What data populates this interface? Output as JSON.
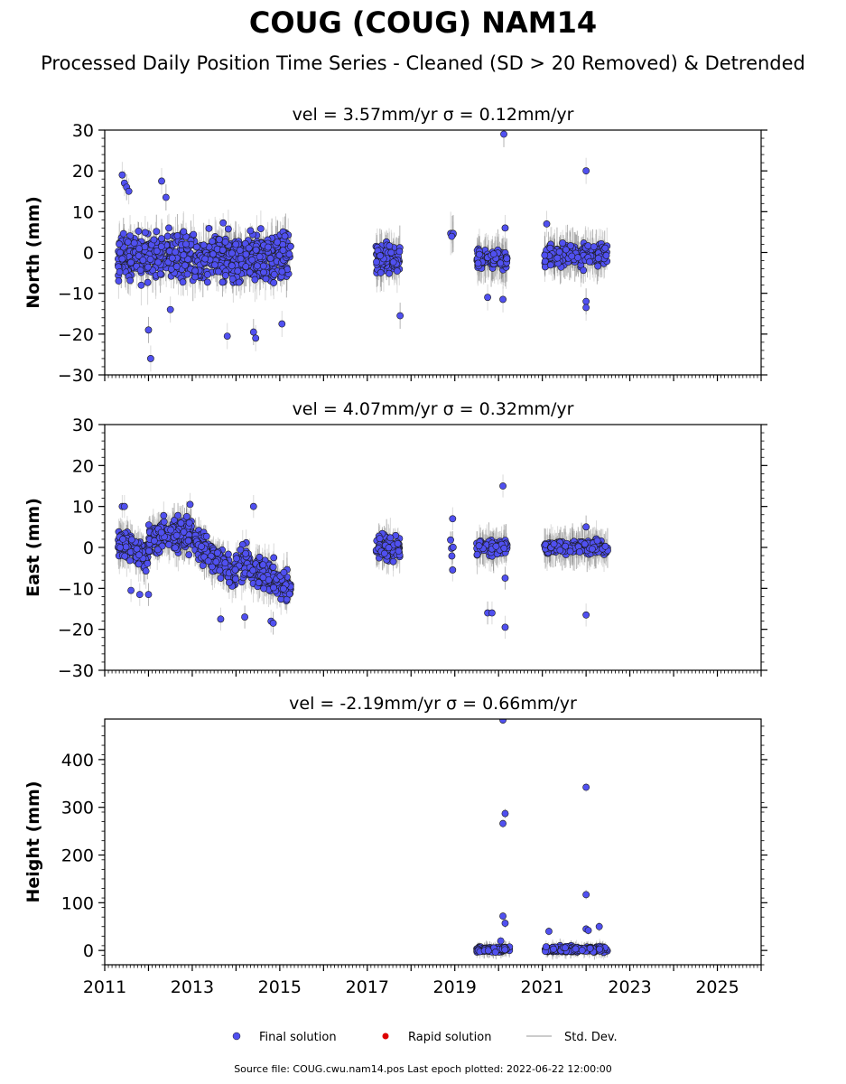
{
  "title": "COUG (COUG) NAM14",
  "subtitle": "Processed Daily Position Time Series - Cleaned (SD > 20 Removed) & Detrended",
  "footer": "Source file: COUG.cwu.nam14.pos  Last epoch plotted: 2022-06-22 12:00:00",
  "legend": {
    "final_label": "Final solution",
    "rapid_label": "Rapid solution",
    "std_label": "Std. Dev.",
    "placement": "bottom-center"
  },
  "colors": {
    "final_marker": "#5050f0",
    "rapid_marker": "#dd0000",
    "std_dev": "#bbbbbb",
    "marker_edge": "#1a1a1a"
  },
  "chart_data": [
    {
      "type": "scatter",
      "panel": "north",
      "title": "vel = 3.57mm/yr   σ = 0.12mm/yr",
      "ylabel": "North (mm)",
      "xlim": [
        2011,
        2026
      ],
      "ylim": [
        -30,
        30
      ],
      "y_ticks": [
        -30,
        -20,
        -10,
        0,
        10,
        20,
        30
      ],
      "x_ticks": [
        2011,
        2013,
        2015,
        2017,
        2019,
        2021,
        2023,
        2025
      ],
      "clusters": [
        {
          "x_range": [
            2011.3,
            2015.25
          ],
          "center": -1,
          "spread": 5.5,
          "count": 700
        },
        {
          "x_range": [
            2017.2,
            2017.75
          ],
          "center": -1.5,
          "spread": 3.5,
          "count": 110
        },
        {
          "x_range": [
            2018.9,
            2018.97
          ],
          "center": 4,
          "spread": 1.5,
          "count": 5
        },
        {
          "x_range": [
            2019.5,
            2020.2
          ],
          "center": -1.5,
          "spread": 2.2,
          "count": 120
        },
        {
          "x_range": [
            2021.05,
            2022.5
          ],
          "center": -0.5,
          "spread": 2.5,
          "count": 200
        }
      ],
      "outliers": [
        {
          "x": 2011.4,
          "y": 19
        },
        {
          "x": 2011.45,
          "y": 17
        },
        {
          "x": 2011.5,
          "y": 16
        },
        {
          "x": 2011.55,
          "y": 15
        },
        {
          "x": 2011.35,
          "y": 0
        },
        {
          "x": 2012.0,
          "y": -19
        },
        {
          "x": 2012.05,
          "y": -26
        },
        {
          "x": 2012.3,
          "y": 17.5
        },
        {
          "x": 2012.4,
          "y": 13.5
        },
        {
          "x": 2012.5,
          "y": -14
        },
        {
          "x": 2013.8,
          "y": -20.5
        },
        {
          "x": 2014.4,
          "y": -19.5
        },
        {
          "x": 2014.45,
          "y": -21
        },
        {
          "x": 2015.05,
          "y": -17.5
        },
        {
          "x": 2017.75,
          "y": -15.5
        },
        {
          "x": 2019.75,
          "y": -11
        },
        {
          "x": 2020.1,
          "y": -11.5
        },
        {
          "x": 2020.12,
          "y": 29
        },
        {
          "x": 2020.15,
          "y": 6
        },
        {
          "x": 2022.0,
          "y": 20
        },
        {
          "x": 2022.0,
          "y": -12
        },
        {
          "x": 2022.0,
          "y": -13.5
        },
        {
          "x": 2021.1,
          "y": 7
        }
      ]
    },
    {
      "type": "scatter",
      "panel": "east",
      "title": "vel = 4.07mm/yr   σ = 0.32mm/yr",
      "ylabel": "East (mm)",
      "xlim": [
        2011,
        2026
      ],
      "ylim": [
        -30,
        30
      ],
      "y_ticks": [
        -30,
        -20,
        -10,
        0,
        10,
        20,
        30
      ],
      "x_ticks": [
        2011,
        2013,
        2015,
        2017,
        2019,
        2021,
        2023,
        2025
      ],
      "trend_segments": [
        {
          "x_range": [
            2011.3,
            2012.0
          ],
          "y_start": 1.5,
          "y_end": -2
        },
        {
          "x_range": [
            2012.0,
            2013.0
          ],
          "y_start": 2,
          "y_end": 4
        },
        {
          "x_range": [
            2013.0,
            2014.0
          ],
          "y_start": 2,
          "y_end": -7
        },
        {
          "x_range": [
            2014.0,
            2015.25
          ],
          "y_start": -3,
          "y_end": -10
        }
      ],
      "clusters": [
        {
          "x_range": [
            2011.3,
            2015.25
          ],
          "center": 0,
          "spread": 3.5,
          "count": 700
        },
        {
          "x_range": [
            2017.2,
            2017.75
          ],
          "center": 1.5,
          "spread": 2.8,
          "count": 110
        },
        {
          "x_range": [
            2018.9,
            2018.97
          ],
          "center": -1,
          "spread": 2.5,
          "count": 5
        },
        {
          "x_range": [
            2019.5,
            2020.2
          ],
          "center": -0.8,
          "spread": 1.6,
          "count": 120
        },
        {
          "x_range": [
            2021.05,
            2022.5
          ],
          "center": -0.5,
          "spread": 1.5,
          "count": 200
        }
      ],
      "outliers": [
        {
          "x": 2011.4,
          "y": 10
        },
        {
          "x": 2011.45,
          "y": 10
        },
        {
          "x": 2011.35,
          "y": 0
        },
        {
          "x": 2011.6,
          "y": -10.5
        },
        {
          "x": 2011.8,
          "y": -11.5
        },
        {
          "x": 2012.0,
          "y": -11.5
        },
        {
          "x": 2012.95,
          "y": 10.5
        },
        {
          "x": 2013.65,
          "y": -17.5
        },
        {
          "x": 2014.2,
          "y": -17
        },
        {
          "x": 2014.4,
          "y": 10
        },
        {
          "x": 2014.8,
          "y": -18
        },
        {
          "x": 2014.85,
          "y": -18.5
        },
        {
          "x": 2018.95,
          "y": 7
        },
        {
          "x": 2018.95,
          "y": -5.5
        },
        {
          "x": 2019.75,
          "y": -16
        },
        {
          "x": 2019.85,
          "y": -16
        },
        {
          "x": 2020.1,
          "y": 15
        },
        {
          "x": 2020.15,
          "y": -7.5
        },
        {
          "x": 2020.15,
          "y": -19.5
        },
        {
          "x": 2022.0,
          "y": -16.5
        },
        {
          "x": 2022.0,
          "y": 5
        }
      ]
    },
    {
      "type": "scatter",
      "panel": "height",
      "title": "vel = -2.19mm/yr   σ = 0.66mm/yr",
      "ylabel": "Height (mm)",
      "xlim": [
        2011,
        2026
      ],
      "ylim": [
        -30,
        485
      ],
      "y_ticks": [
        0,
        100,
        200,
        300,
        400
      ],
      "x_ticks": [
        2011,
        2013,
        2015,
        2017,
        2019,
        2021,
        2023,
        2025
      ],
      "clusters": [
        {
          "x_range": [
            2019.5,
            2020.25
          ],
          "center": 2,
          "spread": 5,
          "count": 120
        },
        {
          "x_range": [
            2021.05,
            2022.5
          ],
          "center": 2,
          "spread": 6,
          "count": 200
        }
      ],
      "outliers": [
        {
          "x": 2020.1,
          "y": 483
        },
        {
          "x": 2020.15,
          "y": 287
        },
        {
          "x": 2020.1,
          "y": 266
        },
        {
          "x": 2020.1,
          "y": 72
        },
        {
          "x": 2020.15,
          "y": 57
        },
        {
          "x": 2020.05,
          "y": 20
        },
        {
          "x": 2022.0,
          "y": 342
        },
        {
          "x": 2022.0,
          "y": 117
        },
        {
          "x": 2022.0,
          "y": 45
        },
        {
          "x": 2022.05,
          "y": 42
        },
        {
          "x": 2022.3,
          "y": 50
        },
        {
          "x": 2021.15,
          "y": 40
        }
      ]
    }
  ]
}
